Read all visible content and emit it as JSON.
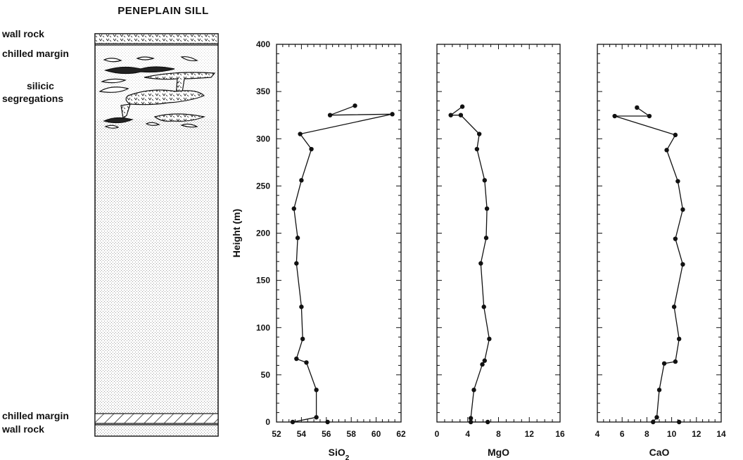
{
  "figure": {
    "title": "PENEPLAIN SILL",
    "column_labels": {
      "wall_rock_top": "wall rock",
      "chilled_margin_top": "chilled margin",
      "silicic_segregations_line1": "silicic",
      "silicic_segregations_line2": "segregations",
      "chilled_margin_bottom": "chilled margin",
      "wall_rock_bottom": "wall rock"
    },
    "colors": {
      "ink": "#111111",
      "stipple": "#bdbdbd"
    }
  },
  "chart_data": [
    {
      "type": "line",
      "xlabel": "SiO",
      "xlabel_sub": "2",
      "ylabel": "Height (m)",
      "xlim": [
        52,
        62
      ],
      "ylim": [
        0,
        400
      ],
      "xticks": [
        52,
        54,
        56,
        58,
        60,
        62
      ],
      "yticks": [
        0,
        50,
        100,
        150,
        200,
        250,
        300,
        350,
        400
      ],
      "points": [
        [
          56.1,
          0
        ],
        [
          53.3,
          0
        ],
        [
          55.2,
          5
        ],
        [
          55.2,
          34
        ],
        [
          54.4,
          63
        ],
        [
          53.6,
          67
        ],
        [
          54.1,
          88
        ],
        [
          54.0,
          122
        ],
        [
          53.6,
          168
        ],
        [
          53.7,
          195
        ],
        [
          53.4,
          226
        ],
        [
          54.0,
          256
        ],
        [
          54.8,
          289
        ],
        [
          53.9,
          305
        ],
        [
          61.3,
          326
        ],
        [
          56.3,
          325
        ],
        [
          58.3,
          335
        ]
      ]
    },
    {
      "type": "line",
      "xlabel": "MgO",
      "ylabel": "",
      "xlim": [
        0,
        16
      ],
      "ylim": [
        0,
        400
      ],
      "xticks": [
        0,
        4,
        8,
        12,
        16
      ],
      "yticks": [
        0,
        50,
        100,
        150,
        200,
        250,
        300,
        350,
        400
      ],
      "points": [
        [
          6.6,
          0
        ],
        [
          4.4,
          0
        ],
        [
          4.4,
          4
        ],
        [
          4.8,
          34
        ],
        [
          5.9,
          61
        ],
        [
          6.2,
          65
        ],
        [
          6.8,
          88
        ],
        [
          6.1,
          122
        ],
        [
          5.7,
          168
        ],
        [
          6.4,
          195
        ],
        [
          6.5,
          226
        ],
        [
          6.2,
          256
        ],
        [
          5.2,
          289
        ],
        [
          5.5,
          305
        ],
        [
          3.1,
          325
        ],
        [
          1.8,
          325
        ],
        [
          3.3,
          334
        ]
      ]
    },
    {
      "type": "line",
      "xlabel": "CaO",
      "ylabel": "",
      "xlim": [
        4,
        14
      ],
      "ylim": [
        0,
        400
      ],
      "xticks": [
        4,
        6,
        8,
        10,
        12,
        14
      ],
      "yticks": [
        0,
        50,
        100,
        150,
        200,
        250,
        300,
        350,
        400
      ],
      "points": [
        [
          10.6,
          0
        ],
        [
          8.5,
          0
        ],
        [
          8.8,
          5
        ],
        [
          9.0,
          34
        ],
        [
          9.4,
          62
        ],
        [
          10.3,
          64
        ],
        [
          10.6,
          88
        ],
        [
          10.2,
          122
        ],
        [
          10.9,
          167
        ],
        [
          10.3,
          194
        ],
        [
          10.9,
          225
        ],
        [
          10.5,
          255
        ],
        [
          9.6,
          288
        ],
        [
          10.3,
          304
        ],
        [
          5.4,
          324
        ],
        [
          8.2,
          324
        ],
        [
          7.2,
          333
        ]
      ]
    }
  ]
}
